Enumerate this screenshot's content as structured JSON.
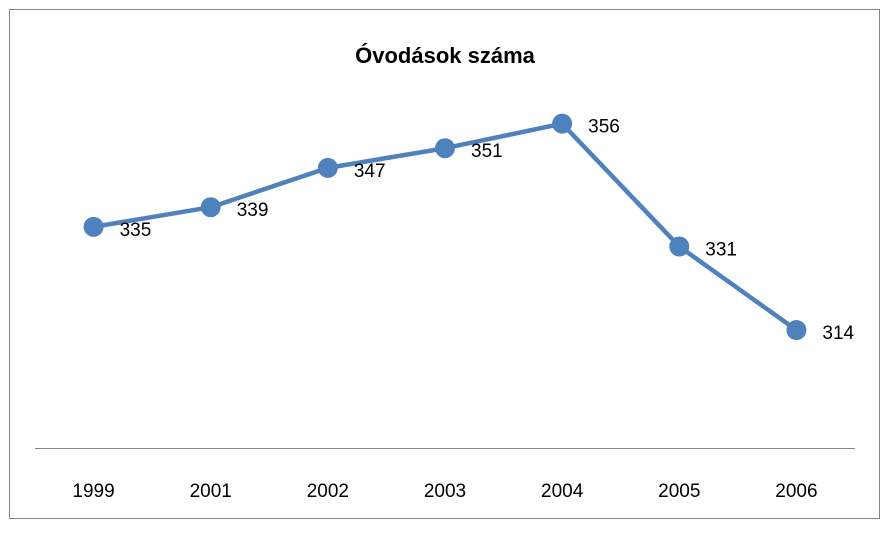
{
  "chart_data": {
    "type": "line",
    "title": "Óvodások száma",
    "categories": [
      "1999",
      "2001",
      "2002",
      "2003",
      "2004",
      "2005",
      "2006"
    ],
    "values": [
      335,
      339,
      347,
      351,
      356,
      331,
      314
    ],
    "color": "#4f81bd",
    "ylim": [
      290,
      360
    ]
  }
}
